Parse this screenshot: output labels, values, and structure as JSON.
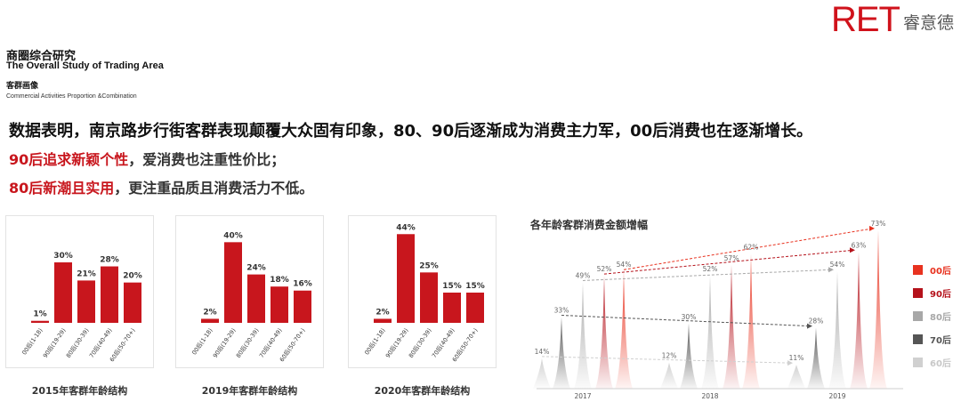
{
  "brand": {
    "logo_letters": "RET",
    "logo_cn": "睿意德"
  },
  "header": {
    "title_cn": "商圈综合研究",
    "title_en": "The Overall Study of Trading Area",
    "subtitle_cn": "客群画像",
    "subtitle_en": "Commercial Activities Proportion &Combination"
  },
  "summary": {
    "headline": "数据表明，南京路步行街客群表现颠覆大众固有印象，80、90后逐渐成为消费主力军，00后消费也在逐渐增长。",
    "point1_highlight": "90后追求新颖个性",
    "point1_rest": "，爱消费也注重性价比；",
    "point2_highlight": "80后新潮且实用",
    "point2_rest": "，更注重品质且消费活力不低。"
  },
  "colors": {
    "accent": "#c8161d",
    "g80": "#a8a8a8",
    "g70": "#555555",
    "g60": "#d0d0d0",
    "c00": "#e8321f",
    "c90": "#b5121b"
  },
  "chart_data": [
    {
      "type": "bar",
      "title": "2015年客群年龄结构",
      "categories": [
        "00后(1-18)",
        "90后(19-29)",
        "80后(30-39)",
        "70后(40-49)",
        "60后(50-70+)"
      ],
      "values": [
        1,
        30,
        21,
        28,
        20
      ],
      "labels": [
        "1%",
        "30%",
        "21%",
        "28%",
        "20%"
      ],
      "ylim": [
        0,
        45
      ]
    },
    {
      "type": "bar",
      "title": "2019年客群年龄结构",
      "categories": [
        "00后(1-18)",
        "90后(19-29)",
        "80后(30-39)",
        "70后(40-49)",
        "60后(50-70+)"
      ],
      "values": [
        2,
        40,
        24,
        18,
        16
      ],
      "labels": [
        "2%",
        "40%",
        "24%",
        "18%",
        "16%"
      ],
      "ylim": [
        0,
        45
      ]
    },
    {
      "type": "bar",
      "title": "2020年客群年龄结构",
      "categories": [
        "00后(1-18)",
        "90后(19-29)",
        "80后(30-39)",
        "70后(40-49)",
        "60后(50-70+)"
      ],
      "values": [
        2,
        44,
        25,
        15,
        15
      ],
      "labels": [
        "2%",
        "44%",
        "25%",
        "15%",
        "15%"
      ],
      "ylim": [
        0,
        45
      ]
    },
    {
      "type": "area",
      "title": "各年龄客群消费金额增幅",
      "x": [
        "2017",
        "2018",
        "2019"
      ],
      "series_order": [
        "60后",
        "70后",
        "80后",
        "90后",
        "00后"
      ],
      "spikes": [
        {
          "year": "2017",
          "group": "60后",
          "value": 14
        },
        {
          "year": "2017",
          "group": "70后",
          "value": 33
        },
        {
          "year": "2017",
          "group": "80后",
          "value": 49
        },
        {
          "year": "2017",
          "group": "90后",
          "value": 52
        },
        {
          "year": "2017",
          "group": "00后",
          "value": 54
        },
        {
          "year": "2018",
          "group": "60后",
          "value": 12
        },
        {
          "year": "2018",
          "group": "70后",
          "value": 30
        },
        {
          "year": "2018",
          "group": "80后",
          "value": 52
        },
        {
          "year": "2018",
          "group": "90后",
          "value": 57
        },
        {
          "year": "2018",
          "group": "00后",
          "value": 62
        },
        {
          "year": "2019",
          "group": "60后",
          "value": 11
        },
        {
          "year": "2019",
          "group": "70后",
          "value": 28
        },
        {
          "year": "2019",
          "group": "80后",
          "value": 54
        },
        {
          "year": "2019",
          "group": "90后",
          "value": 63
        },
        {
          "year": "2019",
          "group": "00后",
          "value": 73
        }
      ],
      "legend": [
        {
          "name": "00后",
          "color": "#e8321f",
          "text_color": "#e8321f"
        },
        {
          "name": "90后",
          "color": "#b5121b",
          "text_color": "#b5121b"
        },
        {
          "name": "80后",
          "color": "#a8a8a8",
          "text_color": "#a8a8a8"
        },
        {
          "name": "70后",
          "color": "#555555",
          "text_color": "#555555"
        },
        {
          "name": "60后",
          "color": "#d0d0d0",
          "text_color": "#c8c8c8"
        }
      ],
      "legend_position": "right"
    }
  ]
}
